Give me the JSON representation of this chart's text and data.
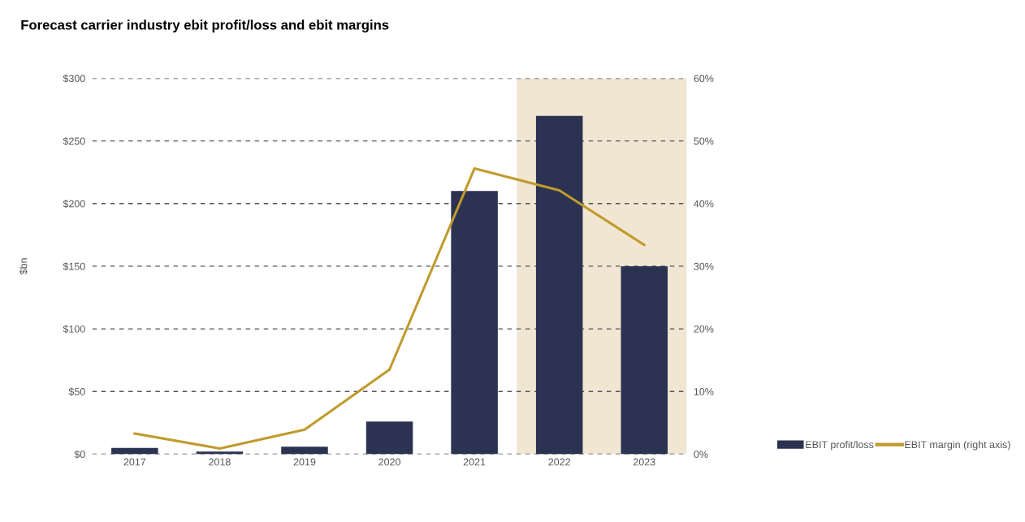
{
  "chart_data": {
    "type": "bar",
    "title": "Forecast carrier industry ebit profit/loss and ebit margins",
    "ylabel": "$bn",
    "categories": [
      "2017",
      "2018",
      "2019",
      "2020",
      "2021",
      "2022",
      "2023"
    ],
    "series": [
      {
        "name": "EBIT profit/loss",
        "color": "#2b3252",
        "values": [
          5,
          2,
          6,
          26,
          210,
          270,
          150
        ]
      },
      {
        "name": "EBIT margin (right axis)",
        "type": "line",
        "axis": "y2",
        "color": "#c09a2c",
        "values": [
          3.3,
          0.9,
          3.9,
          13.5,
          45.6,
          42.1,
          33.4
        ]
      }
    ],
    "ylim": [
      0,
      300
    ],
    "yticks": [
      {
        "value": 0,
        "label": "$0"
      },
      {
        "value": 50,
        "label": "$50"
      },
      {
        "value": 100,
        "label": "$100"
      },
      {
        "value": 150,
        "label": "$150"
      },
      {
        "value": 200,
        "label": "$200"
      },
      {
        "value": 250,
        "label": "$250"
      },
      {
        "value": 300,
        "label": "$300"
      }
    ],
    "y2lim": [
      0,
      60
    ],
    "y2ticks": [
      {
        "value": 0,
        "label": "0%"
      },
      {
        "value": 10,
        "label": "10%"
      },
      {
        "value": 20,
        "label": "20%"
      },
      {
        "value": 30,
        "label": "30%"
      },
      {
        "value": 40,
        "label": "40%"
      },
      {
        "value": 50,
        "label": "50%"
      },
      {
        "value": 60,
        "label": "60%"
      }
    ],
    "bands": [
      {
        "axis": "x",
        "from": "2022",
        "to": "2023",
        "color": "#f0e6d2"
      }
    ],
    "grid": "y",
    "legend": "bottom right",
    "marker": "none",
    "line_style": "solid"
  }
}
